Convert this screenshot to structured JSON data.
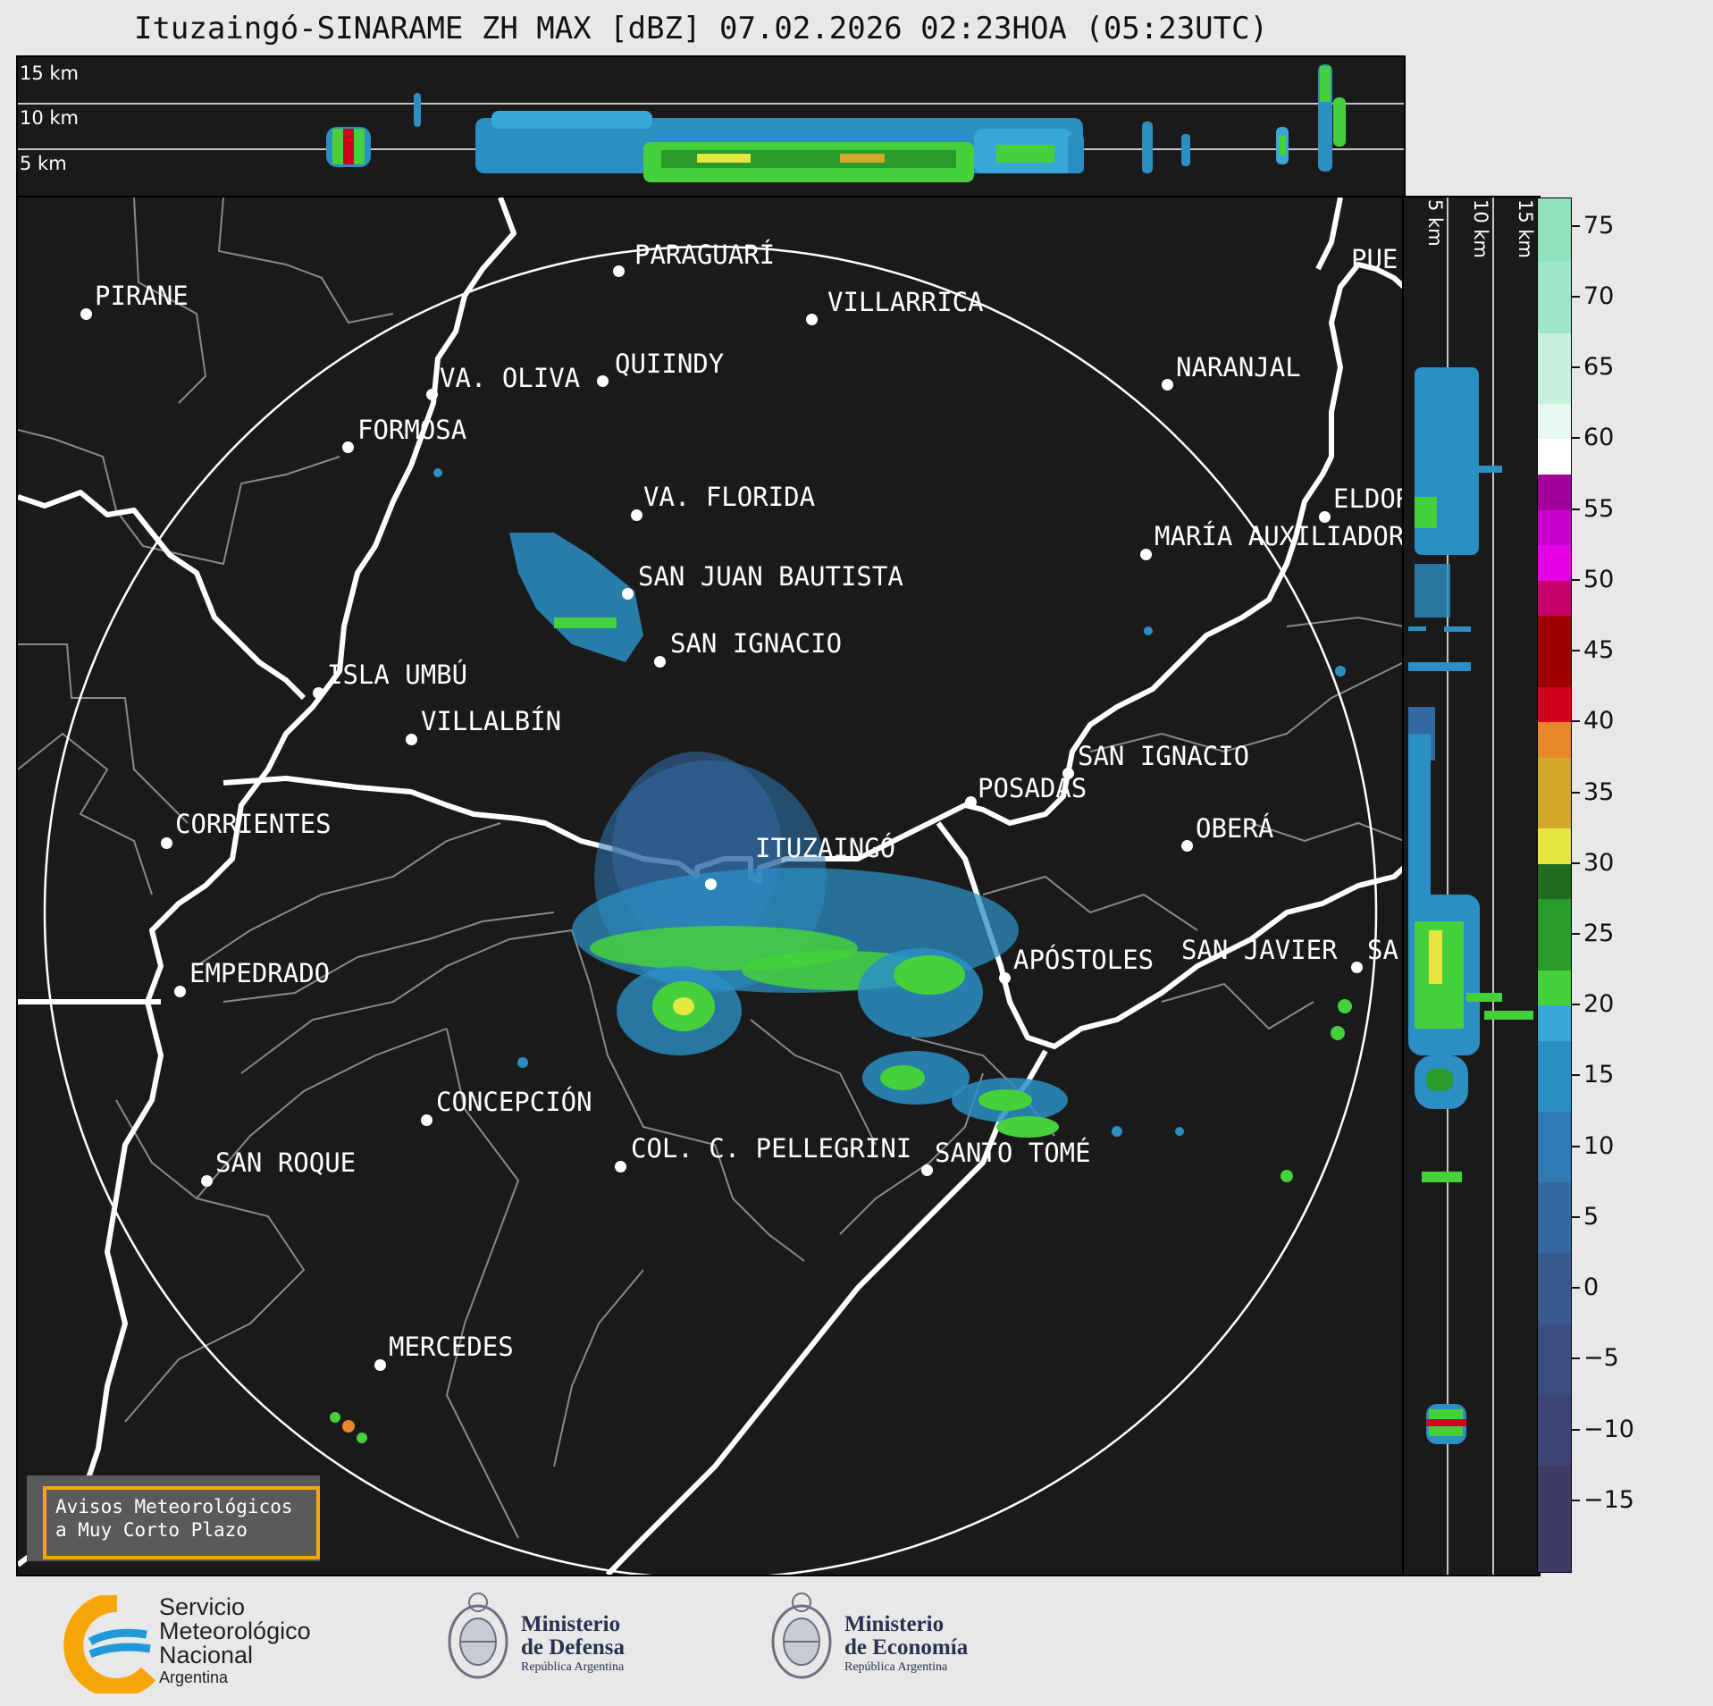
{
  "title": "Ituzaingó-SINARAME ZH MAX [dBZ] 07.02.2026 02:23HOA (05:23UTC)",
  "top_panel": {
    "height_labels": [
      "15 km",
      "10 km",
      "5 km"
    ]
  },
  "side_panel": {
    "height_labels": [
      "5 km",
      "10 km",
      "15 km"
    ]
  },
  "colorbar": {
    "unit": "dBZ",
    "tick_labels": [
      "75",
      "70",
      "65",
      "60",
      "55",
      "50",
      "45",
      "40",
      "35",
      "30",
      "25",
      "20",
      "15",
      "10",
      "5",
      "0",
      "−5",
      "−10",
      "−15"
    ],
    "range": [
      -20,
      77
    ],
    "segments": [
      {
        "from": 72.5,
        "to": 77,
        "color": "#8fe0bd"
      },
      {
        "from": 67.5,
        "to": 72.5,
        "color": "#9fe6c8"
      },
      {
        "from": 62.5,
        "to": 67.5,
        "color": "#c8f0de"
      },
      {
        "from": 60,
        "to": 62.5,
        "color": "#e6f7ef"
      },
      {
        "from": 57.5,
        "to": 60,
        "color": "#ffffff"
      },
      {
        "from": 55,
        "to": 57.5,
        "color": "#a3009e"
      },
      {
        "from": 52.5,
        "to": 55,
        "color": "#cc00cc"
      },
      {
        "from": 50,
        "to": 52.5,
        "color": "#e600e6"
      },
      {
        "from": 47.5,
        "to": 50,
        "color": "#c7006b"
      },
      {
        "from": 42.5,
        "to": 47.5,
        "color": "#a10000"
      },
      {
        "from": 40,
        "to": 42.5,
        "color": "#d40020"
      },
      {
        "from": 37.5,
        "to": 40,
        "color": "#e8862a"
      },
      {
        "from": 32.5,
        "to": 37.5,
        "color": "#d4a82a"
      },
      {
        "from": 30,
        "to": 32.5,
        "color": "#e6e641"
      },
      {
        "from": 27.5,
        "to": 30,
        "color": "#1f6b1f"
      },
      {
        "from": 22.5,
        "to": 27.5,
        "color": "#2a9a2a"
      },
      {
        "from": 20,
        "to": 22.5,
        "color": "#46d13c"
      },
      {
        "from": 17.5,
        "to": 20,
        "color": "#38a8d8"
      },
      {
        "from": 12.5,
        "to": 17.5,
        "color": "#2c8fc4"
      },
      {
        "from": 7.5,
        "to": 12.5,
        "color": "#3079b3"
      },
      {
        "from": 2.5,
        "to": 7.5,
        "color": "#3468a0"
      },
      {
        "from": -2.5,
        "to": 2.5,
        "color": "#375a8e"
      },
      {
        "from": -7.5,
        "to": -2.5,
        "color": "#3a4f80"
      },
      {
        "from": -12.5,
        "to": -7.5,
        "color": "#3c4573"
      },
      {
        "from": -20,
        "to": -12.5,
        "color": "#3e3c66"
      }
    ]
  },
  "cities": [
    {
      "name": "PARAGUARÍ"
    },
    {
      "name": "PIRANE"
    },
    {
      "name": "VILLARRICA"
    },
    {
      "name": "QUIINDY"
    },
    {
      "name": "VA. OLIVA"
    },
    {
      "name": "NARANJAL"
    },
    {
      "name": "FORMOSA"
    },
    {
      "name": "VA. FLORIDA"
    },
    {
      "name": "ELDOR"
    },
    {
      "name": "MARÍA AUXILIADOR"
    },
    {
      "name": "SAN JUAN BAUTISTA"
    },
    {
      "name": "SAN IGNACIO"
    },
    {
      "name": "ISLA UMBÚ"
    },
    {
      "name": "VILLALBÍN"
    },
    {
      "name": "SAN IGNACIO"
    },
    {
      "name": "POSADAS"
    },
    {
      "name": "CORRIENTES"
    },
    {
      "name": "ITUZAINGÓ"
    },
    {
      "name": "OBERÁ"
    },
    {
      "name": "APÓSTOLES"
    },
    {
      "name": "SAN JAVIER"
    },
    {
      "name": "SA"
    },
    {
      "name": "EMPEDRADO"
    },
    {
      "name": "CONCEPCIÓN"
    },
    {
      "name": "COL. C. PELLEGRINI"
    },
    {
      "name": "SANTO TOMÉ"
    },
    {
      "name": "SAN ROQUE"
    },
    {
      "name": "MERCEDES"
    },
    {
      "name": "PUE"
    }
  ],
  "warning_box": {
    "line1": "Avisos Meteorológicos",
    "line2": "a Muy Corto Plazo"
  },
  "logos": {
    "smn": {
      "line1": "Servicio",
      "line2": "Meteorológico",
      "line3": "Nacional",
      "line4": "Argentina"
    },
    "defensa": {
      "line1": "Ministerio",
      "line2": "de Defensa",
      "line3": "República Argentina"
    },
    "economia": {
      "line1": "Ministerio",
      "line2": "de Economía",
      "line3": "República Argentina"
    }
  }
}
